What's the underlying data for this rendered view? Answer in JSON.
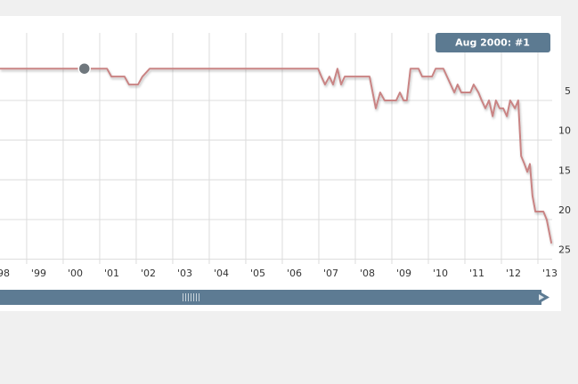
{
  "chart_data": {
    "type": "line",
    "color": "#c98484",
    "x": [
      1998.27,
      2001.2,
      2001.32,
      2001.68,
      2001.8,
      2002.05,
      2002.17,
      2002.37,
      2006.98,
      2007.07,
      2007.17,
      2007.29,
      2007.39,
      2007.51,
      2007.61,
      2007.71,
      2008.39,
      2008.56,
      2008.68,
      2008.8,
      2009.12,
      2009.22,
      2009.32,
      2009.41,
      2009.51,
      2009.73,
      2009.83,
      2010.1,
      2010.2,
      2010.41,
      2010.51,
      2010.61,
      2010.71,
      2010.8,
      2010.9,
      2011.15,
      2011.24,
      2011.37,
      2011.46,
      2011.56,
      2011.66,
      2011.76,
      2011.85,
      2011.95,
      2012.05,
      2012.15,
      2012.24,
      2012.37,
      2012.46,
      2012.54,
      2012.63,
      2012.71,
      2012.78,
      2012.85,
      2012.93,
      2013.15,
      2013.24,
      2013.37
    ],
    "values": [
      1,
      1,
      2,
      2,
      3,
      3,
      2,
      1,
      1,
      2,
      3,
      2,
      3,
      1,
      3,
      2,
      2,
      6,
      4,
      5,
      5,
      4,
      5,
      5,
      1,
      1,
      2,
      2,
      1,
      1,
      2,
      3,
      4,
      3,
      4,
      4,
      3,
      4,
      5,
      6,
      5,
      7,
      5,
      6,
      6,
      7,
      5,
      6,
      5,
      12,
      13,
      14,
      13,
      17,
      19,
      19,
      20,
      23
    ],
    "xlim": [
      1998.27,
      2013.39
    ],
    "xticks": [
      {
        "value": 1998,
        "label": "'98"
      },
      {
        "value": 1999,
        "label": "'99"
      },
      {
        "value": 2000,
        "label": "'00"
      },
      {
        "value": 2001,
        "label": "'01"
      },
      {
        "value": 2002,
        "label": "'02"
      },
      {
        "value": 2003,
        "label": "'03"
      },
      {
        "value": 2004,
        "label": "'04"
      },
      {
        "value": 2005,
        "label": "'05"
      },
      {
        "value": 2006,
        "label": "'06"
      },
      {
        "value": 2007,
        "label": "'07"
      },
      {
        "value": 2008,
        "label": "'08"
      },
      {
        "value": 2009,
        "label": "'09"
      },
      {
        "value": 2010,
        "label": "'10"
      },
      {
        "value": 2011,
        "label": "'11"
      },
      {
        "value": 2012,
        "label": "'12"
      },
      {
        "value": 2013,
        "label": "'13"
      }
    ],
    "ylim": [
      -3.5,
      25.6
    ],
    "y_inverted": true,
    "yticks": [
      5,
      10,
      15,
      20,
      25
    ],
    "grid": true,
    "highlight": {
      "x": 2000.58,
      "y": 1,
      "label": "Aug 2000: #1"
    }
  }
}
